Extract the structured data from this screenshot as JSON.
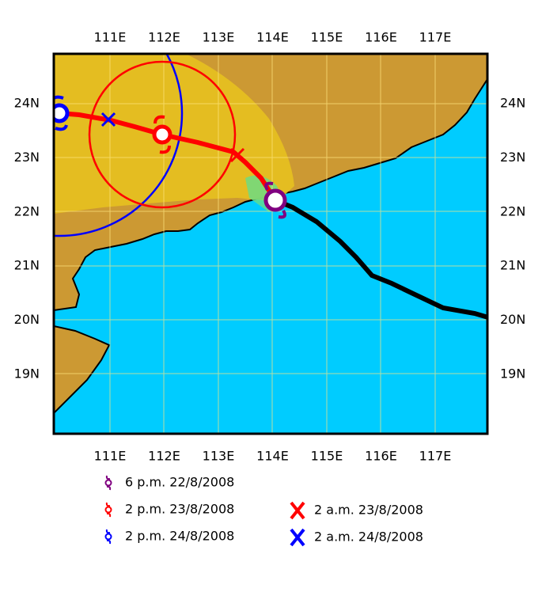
{
  "map": {
    "longitude_labels": [
      "111E",
      "112E",
      "113E",
      "114E",
      "115E",
      "116E",
      "117E"
    ],
    "latitude_labels": [
      "24N",
      "23N",
      "22N",
      "21N",
      "20N",
      "19N"
    ],
    "legend": [
      {
        "label": "6 p.m. 22/8/2008",
        "color": "#800080",
        "symbol": "typhoon"
      },
      {
        "label": "2 p.m. 23/8/2008",
        "color": "#ff0000",
        "symbol": "typhoon"
      },
      {
        "label": "2 p.m. 24/8/2008",
        "color": "#0000ff",
        "symbol": "typhoon"
      },
      {
        "label": "2 a.m. 23/8/2008",
        "color": "#ff0000",
        "symbol": "cross"
      },
      {
        "label": "2 a.m. 24/8/2008",
        "color": "#0000ff",
        "symbol": "cross"
      }
    ]
  }
}
